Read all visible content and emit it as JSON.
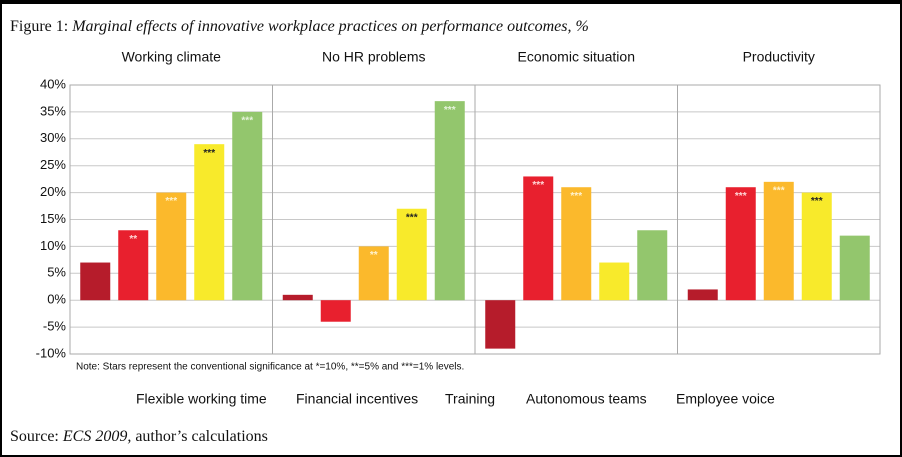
{
  "chart_data": {
    "type": "bar",
    "title": {
      "label": "Figure 1:",
      "text": "Marginal effects of innovative workplace practices on performance outcomes, %"
    },
    "categories": [
      "Working climate",
      "No HR problems",
      "Economic situation",
      "Productivity"
    ],
    "series": [
      {
        "name": "Flexible working time",
        "color": "#b61c2b",
        "star_color": "#ffffff",
        "values": [
          7,
          1,
          -9,
          2
        ],
        "significance": [
          null,
          null,
          null,
          null
        ]
      },
      {
        "name": "Financial incentives",
        "color": "#e8202e",
        "star_color": "#ffd6d6",
        "values": [
          13,
          -4,
          23,
          21
        ],
        "significance": [
          "**",
          null,
          "***",
          "***"
        ]
      },
      {
        "name": "Training",
        "color": "#fbb92c",
        "star_color": "#fff3d0",
        "values": [
          20,
          10,
          21,
          22
        ],
        "significance": [
          "***",
          "**",
          "***",
          "***"
        ]
      },
      {
        "name": "Autonomous teams",
        "color": "#f8ea2b",
        "star_color": "#222222",
        "values": [
          29,
          17,
          7,
          20
        ],
        "significance": [
          "***",
          "***",
          null,
          "***"
        ]
      },
      {
        "name": "Employee voice",
        "color": "#93c66d",
        "star_color": "#e6f3dc",
        "values": [
          35,
          37,
          13,
          12
        ],
        "significance": [
          "***",
          "***",
          null,
          null
        ]
      }
    ],
    "ylim": [
      -10,
      40
    ],
    "yticks": [
      {
        "value": -10,
        "label": "-10%"
      },
      {
        "value": -5,
        "label": "-5%"
      },
      {
        "value": 0,
        "label": "0%"
      },
      {
        "value": 5,
        "label": "5%"
      },
      {
        "value": 10,
        "label": "10%"
      },
      {
        "value": 15,
        "label": "15%"
      },
      {
        "value": 20,
        "label": "20%"
      },
      {
        "value": 25,
        "label": "25%"
      },
      {
        "value": 30,
        "label": "30%"
      },
      {
        "value": 35,
        "label": "35%"
      },
      {
        "value": 40,
        "label": "40%"
      }
    ],
    "grid": true,
    "note": "Note: Stars represent the conventional significance at *=10%, **=5% and ***=1% levels.",
    "source": {
      "label": "Source:",
      "name": "ECS 2009,",
      "text": "author’s calculations"
    }
  }
}
